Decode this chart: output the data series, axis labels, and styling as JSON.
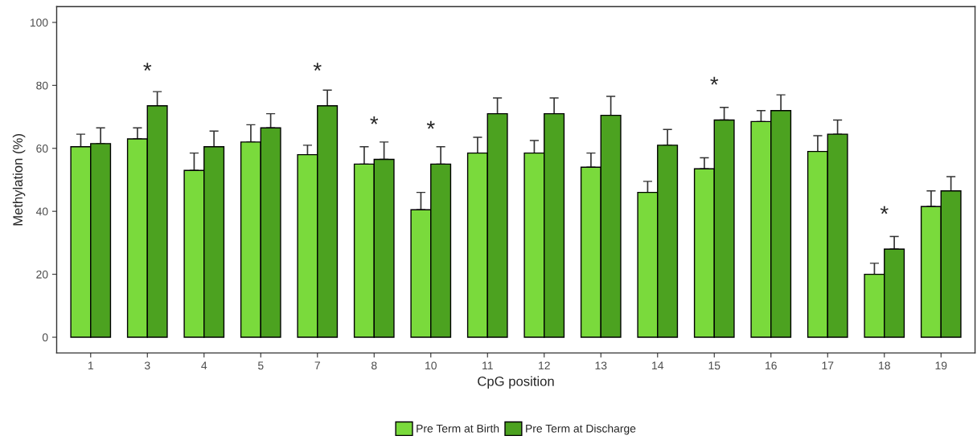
{
  "chart_data": {
    "type": "bar",
    "xlabel": "CpG position",
    "ylabel": "Methylation (%)",
    "categories": [
      "1",
      "3",
      "4",
      "5",
      "7",
      "8",
      "10",
      "11",
      "12",
      "13",
      "14",
      "15",
      "16",
      "17",
      "18",
      "19"
    ],
    "series": [
      {
        "name": "Pre Term at Birth",
        "color": "#7ada3c",
        "values": [
          60.5,
          63,
          53,
          62,
          58,
          55,
          40.5,
          58.5,
          58.5,
          54,
          46,
          53.5,
          68.5,
          59,
          20,
          41.5
        ],
        "errors": [
          [
            60.5,
            64.5
          ],
          [
            63,
            66.5
          ],
          [
            53,
            58.5
          ],
          [
            62,
            67.5
          ],
          [
            58,
            61
          ],
          [
            55,
            60.5
          ],
          [
            40.5,
            46
          ],
          [
            58.5,
            63.5
          ],
          [
            58.5,
            62.5
          ],
          [
            54,
            58.5
          ],
          [
            46,
            49.5
          ],
          [
            53.5,
            57
          ],
          [
            68.5,
            72
          ],
          [
            59,
            64
          ],
          [
            20,
            23.5
          ],
          [
            41.5,
            46.5
          ]
        ]
      },
      {
        "name": "Pre Term at Discharge",
        "color": "#4ca220",
        "values": [
          61.5,
          73.5,
          60.5,
          66.5,
          73.5,
          56.5,
          55,
          71,
          71,
          70.5,
          61,
          69,
          72,
          64.5,
          28,
          46.5
        ],
        "errors": [
          [
            61.5,
            66.5
          ],
          [
            73.5,
            78
          ],
          [
            60.5,
            65.5
          ],
          [
            66.5,
            71
          ],
          [
            73.5,
            78.5
          ],
          [
            56.5,
            62
          ],
          [
            55,
            60.5
          ],
          [
            71,
            76
          ],
          [
            71,
            76
          ],
          [
            70.5,
            76.5
          ],
          [
            61,
            66
          ],
          [
            69,
            73
          ],
          [
            72,
            77
          ],
          [
            64.5,
            69
          ],
          [
            28,
            32
          ],
          [
            46.5,
            51
          ]
        ]
      }
    ],
    "ylim": [
      -5,
      105
    ],
    "yticks": [
      0,
      20,
      40,
      60,
      80,
      100
    ],
    "grid": false,
    "legend": "bottom",
    "annotations": [
      {
        "text": "*",
        "x": "3",
        "y": 73.5
      },
      {
        "text": "*",
        "x": "7",
        "y": 73.5
      },
      {
        "text": "*",
        "x": "8",
        "y": 56.5
      },
      {
        "text": "*",
        "x": "10",
        "y": 55
      },
      {
        "text": "*",
        "x": "15",
        "y": 69
      },
      {
        "text": "*",
        "x": "18",
        "y": 28
      }
    ]
  }
}
